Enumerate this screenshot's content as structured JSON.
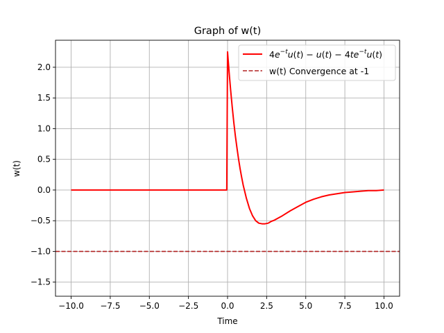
{
  "chart_data": {
    "type": "line",
    "title": "Graph of w(t)",
    "xlabel": "Time",
    "ylabel": "w(t)",
    "xlim": [
      -11,
      11
    ],
    "ylim": [
      -1.73,
      2.44
    ],
    "grid": true,
    "legend_position": "top-right",
    "x_ticks": [
      -10.0,
      -7.5,
      -5.0,
      -2.5,
      0.0,
      2.5,
      5.0,
      7.5,
      10.0
    ],
    "x_tick_labels": [
      "−10.0",
      "−7.5",
      "−5.0",
      "−2.5",
      "0.0",
      "2.5",
      "5.0",
      "7.5",
      "10.0"
    ],
    "y_ticks": [
      2.0,
      1.5,
      1.0,
      0.5,
      0.0,
      -0.5,
      -1.0,
      -1.5
    ],
    "y_tick_labels": [
      "2.0",
      "1.5",
      "1.0",
      "0.5",
      "0.0",
      "−0.5",
      "−1.0",
      "−1.5"
    ],
    "series": [
      {
        "name": "4e^{-t}u(t) - u(t) - 4te^{-t}u(t)",
        "color": "#ff0000",
        "style": "solid",
        "x": [
          -10,
          -0.05,
          0.0,
          0.1,
          0.2,
          0.3,
          0.4,
          0.5,
          0.6,
          0.7,
          0.8,
          0.9,
          1.0,
          1.2,
          1.4,
          1.6,
          1.8,
          2.0,
          2.2,
          2.4,
          2.6,
          2.8,
          3.0,
          3.5,
          4.0,
          4.5,
          5.0,
          5.5,
          6.0,
          6.5,
          7.0,
          7.5,
          8.0,
          8.5,
          9.0,
          9.5,
          10.0
        ],
        "y": [
          0.0,
          0.0,
          2.25,
          1.92,
          1.62,
          1.35,
          1.1,
          0.88,
          0.69,
          0.51,
          0.35,
          0.21,
          0.08,
          -0.13,
          -0.3,
          -0.42,
          -0.5,
          -0.54,
          -0.55,
          -0.55,
          -0.54,
          -0.51,
          -0.49,
          -0.42,
          -0.34,
          -0.27,
          -0.2,
          -0.15,
          -0.11,
          -0.08,
          -0.06,
          -0.04,
          -0.03,
          -0.02,
          -0.01,
          -0.01,
          0.0
        ]
      },
      {
        "name": "w(t) Convergence at -1",
        "color": "#b22222",
        "style": "dashed",
        "y_constant": -1
      }
    ]
  }
}
